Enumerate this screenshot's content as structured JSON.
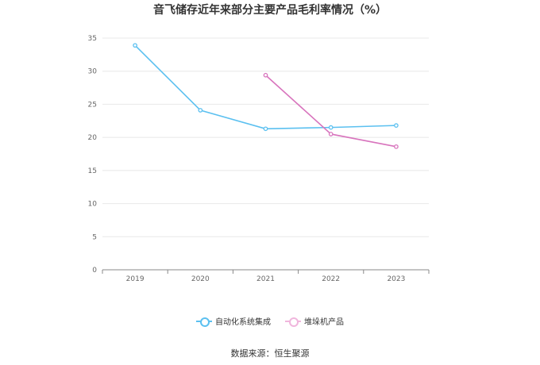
{
  "chart_data": {
    "type": "line",
    "title": "音飞储存近年来部分主要产品毛利率情况（%）",
    "categories": [
      "2019",
      "2020",
      "2021",
      "2022",
      "2023"
    ],
    "series": [
      {
        "name": "自动化系统集成",
        "color": "#5bc0f0",
        "values": [
          33.9,
          24.1,
          21.3,
          21.5,
          21.8
        ]
      },
      {
        "name": "堆垛机产品",
        "color": "#d874bd",
        "values": [
          null,
          null,
          29.4,
          20.5,
          18.6
        ]
      }
    ],
    "ylim": [
      0,
      35
    ],
    "yticks": [
      0,
      5,
      10,
      15,
      20,
      25,
      30,
      35
    ],
    "grid": true,
    "legend_position": "bottom"
  },
  "source_text": "数据来源：恒生聚源"
}
